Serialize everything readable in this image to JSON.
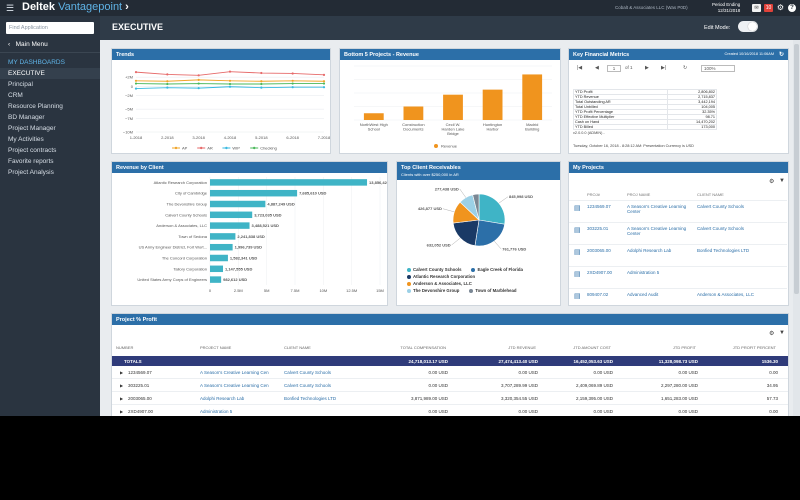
{
  "app": {
    "brand": "Deltek",
    "brand_product": "Vantagepoint",
    "company": "Cobalt & Associates LLC (Was P0D)",
    "period_label": "Period Ending",
    "period_date": "12/31/2018",
    "notification_count": "10",
    "help_label": "?"
  },
  "sidebar": {
    "search_placeholder": "Find Application",
    "main_menu": "Main Menu",
    "items": [
      {
        "label": "MY DASHBOARDS"
      },
      {
        "label": "EXECUTIVE"
      },
      {
        "label": "Principal"
      },
      {
        "label": "CRM"
      },
      {
        "label": "Resource Planning"
      },
      {
        "label": "BD Manager"
      },
      {
        "label": "Project Manager"
      },
      {
        "label": "My Activities"
      },
      {
        "label": "Project contracts"
      },
      {
        "label": "Favorite reports"
      },
      {
        "label": "Project Analysis"
      }
    ]
  },
  "page": {
    "title": "EXECUTIVE",
    "edit_mode_label": "Edit Mode:"
  },
  "trends": {
    "title": "Trends",
    "chart_data": {
      "type": "line",
      "x": [
        "1-2018",
        "2-2018",
        "3-2018",
        "4-2018",
        "5-2018",
        "6-2018",
        "7-2018"
      ],
      "ylim": [
        -10,
        4
      ],
      "yticks": [
        "+2M",
        "0",
        "−2M",
        "−5M",
        "−7M",
        "−10M"
      ],
      "series": [
        {
          "name": "AP",
          "color": "#f0a52a",
          "values": [
            1.2,
            1.1,
            1.4,
            1.2,
            1.1,
            1.2,
            1.1
          ]
        },
        {
          "name": "AR",
          "color": "#e66a6a",
          "values": [
            3.1,
            2.6,
            2.4,
            3.2,
            2.9,
            2.8,
            2.5
          ]
        },
        {
          "name": "WIP",
          "color": "#39b9e0",
          "values": [
            -0.5,
            -0.3,
            -0.4,
            -0.1,
            -0.3,
            -0.2,
            -0.2
          ]
        },
        {
          "name": "Checking",
          "color": "#4ab85a",
          "values": [
            0.6,
            0.5,
            0.6,
            0.5,
            0.5,
            0.6,
            0.6
          ]
        }
      ]
    }
  },
  "bottom5": {
    "title": "Bottom 5 Projects - Revenue",
    "legend": "Revenue",
    "chart_data": {
      "type": "bar",
      "categories": [
        "NorthWest High School",
        "Construction Documents",
        "Cecil W. Harden Lake Bridge",
        "Huntington Harbor",
        "Madrid Building"
      ],
      "values": [
        0.4,
        0.8,
        1.5,
        1.8,
        2.7
      ],
      "ylim": [
        0,
        3.2
      ],
      "color": "#f0941e"
    }
  },
  "kfm": {
    "title": "Key Financial Metrics",
    "created": "Created 10/16/2018 11:06AM",
    "page": "1",
    "of": "of 1",
    "zoom": "100%",
    "rows": [
      {
        "label": "YTD Profit",
        "value": "2,806,802"
      },
      {
        "label": "YTD Revenue",
        "value": "2,715,837"
      },
      {
        "label": "Total Outstanding AR",
        "value": "3,442,194"
      },
      {
        "label": "Total Unbilled",
        "value": "104,005"
      },
      {
        "label": "YTD Profit Percentage",
        "value": "32.35%"
      },
      {
        "label": "YTD Effective Multiplier",
        "value": "98.71"
      },
      {
        "label": "Cash on Hand",
        "value": "14,470,202"
      },
      {
        "label": "YTD Billed",
        "value": "173,000"
      }
    ],
    "footnote": "v2.0.0.0 (ADMIN) -",
    "timestamp": "Tuesday, October 16, 2018 - 8:28:12 AM: Presentation Currency is USD"
  },
  "rbc": {
    "title": "Revenue by Client",
    "chart_data": {
      "type": "bar",
      "orientation": "horizontal",
      "categories": [
        "Atlantic Research Corporation",
        "City of Cambridge",
        "The Devonshire Group",
        "Calvert County Schools",
        "Anderson & Associates, LLC",
        "Town of Sedona",
        "US Army Engineer District, Fort Wort...",
        "The Concord Corporation",
        "Tallory Corporation",
        "United States Army Corps of Engineers"
      ],
      "values": [
        13856424,
        7685610,
        4887249,
        3723035,
        3488521,
        2241838,
        1996739,
        1582341,
        1147555,
        982612
      ],
      "labels": [
        "13,856,424 USD",
        "7,685,610 USD",
        "4,887,249 USD",
        "3,723,035 USD",
        "3,488,521 USD",
        "2,241,838 USD",
        "1,996,739 USD",
        "1,582,341 USD",
        "1,147,555 USD",
        "982,612 USD"
      ],
      "xticks": [
        "0",
        "2.5M",
        "5M",
        "7.5M",
        "10M",
        "12.5M",
        "15M"
      ],
      "xmax": 15000000,
      "color": "#3fb4c6"
    }
  },
  "tcr": {
    "title": "Top Client Receivables",
    "subtitle": "Clients with over $250,000 in AR",
    "chart_data": {
      "type": "pie",
      "slices": [
        {
          "name": "Calvert County Schools",
          "value": 845998,
          "label": "845,998 USD",
          "color": "#3fb4c6"
        },
        {
          "name": "Eagle Creek of Florida",
          "value": 761776,
          "label": "761,776 USD",
          "color": "#2c6fa8"
        },
        {
          "name": "Atlantic Research Corporation",
          "value": 632052,
          "label": "632,052 USD",
          "color": "#1a3a66"
        },
        {
          "name": "Anderson & Associates, LLC",
          "value": 426877,
          "label": "426,877 USD",
          "color": "#f0941e"
        },
        {
          "name": "The Devonshire Group",
          "value": 277438,
          "label": "277,438 USD",
          "color": "#9bd0e6"
        },
        {
          "name": "Town of Marblehead",
          "value": 120000,
          "label": "",
          "color": "#7a8794"
        }
      ]
    },
    "legend_rows": [
      [
        "Calvert County Schools",
        "Eagle Creek of Florida"
      ],
      [
        "Atlantic Research Corporation"
      ],
      [
        "Anderson & Associates, LLC"
      ],
      [
        "The Devonshire Group",
        "Town of Marblehead"
      ]
    ]
  },
  "myprojects": {
    "title": "My Projects",
    "col_proj": "PROJ#",
    "col_name": "PROJ NAME",
    "col_client": "CLIENT NAME",
    "rows": [
      {
        "proj": "1234569.07",
        "name": "A Season's Creative Learning Center",
        "client": "Calvert County Schools"
      },
      {
        "proj": "303225.01",
        "name": "A Season's Creative Learning Center",
        "client": "Calvert County Schools"
      },
      {
        "proj": "2003065.00",
        "name": "Adolphi Research Lab",
        "client": "Bonfied Technologies LTD"
      },
      {
        "proj": "2XD4907.00",
        "name": "Administration 5",
        "client": ""
      },
      {
        "proj": "809407.02",
        "name": "Advanced Audit",
        "client": "Anderson & Associates, LLC"
      }
    ]
  },
  "profit": {
    "title": "Project % Profit",
    "cols": [
      "NUMBER",
      "PROJECT NAME",
      "CLIENT NAME",
      "TOTAL COMPENSATION",
      "JTD REVENUE",
      "JTD AMOUNT COST",
      "JTD PROFIT",
      "JTD PROFIT PERCENT"
    ],
    "totals": {
      "label": "TOTALS",
      "comp": "24,718,013.17 USD",
      "rev": "27,474,413.40 USD",
      "cost": "16,452,053.63 USD",
      "profit": "11,328,098.73 USD",
      "pct": "1536.30"
    },
    "rows": [
      {
        "num": "1234569.07",
        "name": "A Season's Creative Learning Cen",
        "client": "Calvert County Schools",
        "comp": "0.00 USD",
        "rev": "0.00 USD",
        "cost": "0.00 USD",
        "profit": "0.00 USD",
        "pct": "0.00"
      },
      {
        "num": "303225.01",
        "name": "A Season's Creative Learning Cen",
        "client": "Calvert County Schools",
        "comp": "0.00 USD",
        "rev": "3,707,289.99 USD",
        "cost": "2,409,069.89 USD",
        "profit": "2,297,280.00 USD",
        "pct": "34.95"
      },
      {
        "num": "2003065.00",
        "name": "Adolphi Research Lab",
        "client": "Bonfied Technologies LTD",
        "comp": "3,871,989.00 USD",
        "rev": "3,320,354.55 USD",
        "cost": "2,159,395.00 USD",
        "profit": "1,651,283.00 USD",
        "pct": "57.73"
      },
      {
        "num": "2XD4907.00",
        "name": "Administration 5",
        "client": "",
        "comp": "0.00 USD",
        "rev": "0.00 USD",
        "cost": "0.00 USD",
        "profit": "0.00 USD",
        "pct": "0.00"
      }
    ]
  }
}
